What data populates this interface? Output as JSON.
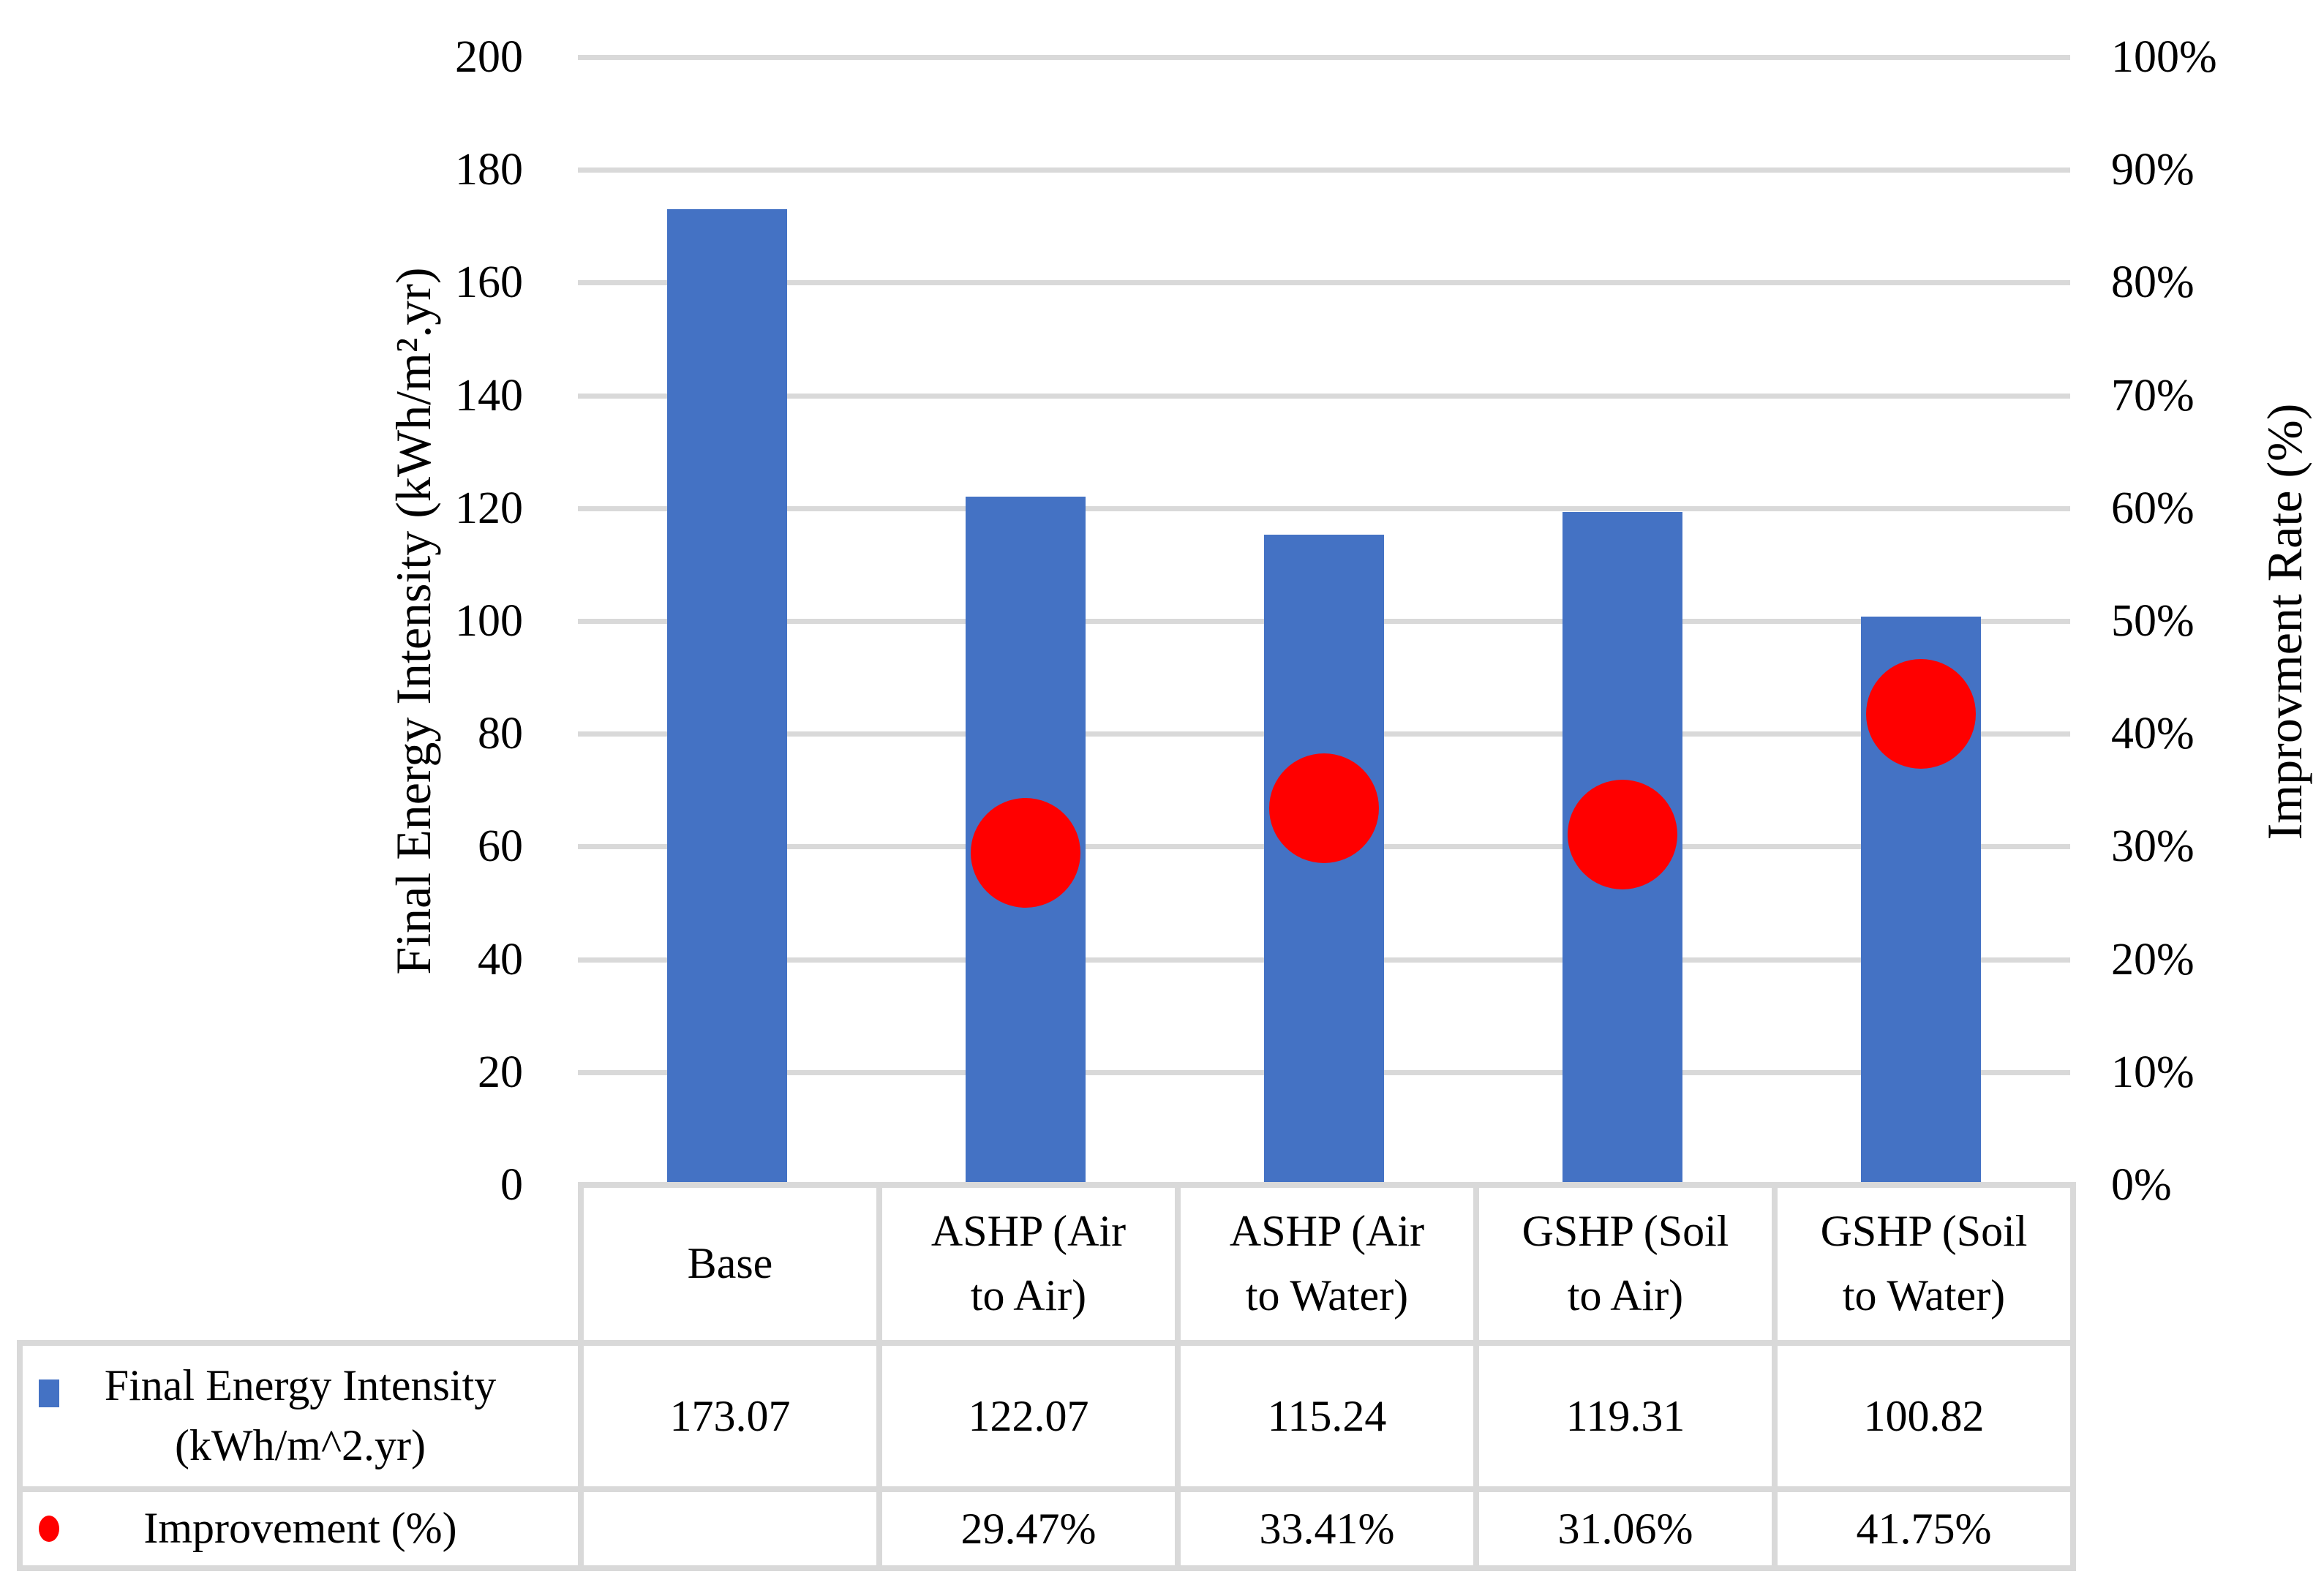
{
  "figure_title": "",
  "chart_data": {
    "type": "combo-bar-scatter",
    "categories": [
      "Base",
      "ASHP (Air to Air)",
      "ASHP (Air to Water)",
      "GSHP (Soil to Air)",
      "GSHP (Soil to Water)"
    ],
    "series": [
      {
        "name": "Final Energy Intensity (kWh/m^2.yr)",
        "type": "bar",
        "axis": "left",
        "values": [
          173.07,
          122.07,
          115.24,
          119.31,
          100.82
        ],
        "color": "#4472C4"
      },
      {
        "name": "Improvement (%)",
        "type": "scatter",
        "axis": "right",
        "values": [
          null,
          29.47,
          33.41,
          31.06,
          41.75
        ],
        "color": "#FF0000"
      }
    ],
    "left_axis": {
      "title": "Final Energy Intensity (kWh/m².yr)",
      "min": 0,
      "max": 200,
      "step": 20,
      "tick_labels": [
        "0",
        "20",
        "40",
        "60",
        "80",
        "100",
        "120",
        "140",
        "160",
        "180",
        "200"
      ]
    },
    "right_axis": {
      "title": "Improvment Rate (%)",
      "min": 0,
      "max": 100,
      "step": 10,
      "tick_labels": [
        "0%",
        "10%",
        "20%",
        "30%",
        "40%",
        "50%",
        "60%",
        "70%",
        "80%",
        "90%",
        "100%"
      ]
    },
    "grid": true,
    "legend_position": "table-left"
  },
  "table": {
    "column_header_lines": [
      [
        "Base"
      ],
      [
        "ASHP (Air",
        "to Air)"
      ],
      [
        "ASHP (Air",
        "to Water)"
      ],
      [
        "GSHP (Soil",
        "to Air)"
      ],
      [
        "GSHP (Soil",
        "to Water)"
      ]
    ],
    "rows": [
      {
        "key_icon": "blue-square",
        "label_lines": [
          "Final Energy Intensity",
          "(kWh/m^2.yr)"
        ],
        "values": [
          "173.07",
          "122.07",
          "115.24",
          "119.31",
          "100.82"
        ]
      },
      {
        "key_icon": "red-circle",
        "label_lines": [
          "Improvement (%)"
        ],
        "values": [
          "",
          "29.47%",
          "33.41%",
          "31.06%",
          "41.75%"
        ]
      }
    ]
  },
  "colors": {
    "bar": "#4472C4",
    "marker": "#FF0000",
    "gridline": "#D9D9D9",
    "table_border": "#D9D9D9",
    "text": "#000000",
    "background": "#FFFFFF"
  }
}
